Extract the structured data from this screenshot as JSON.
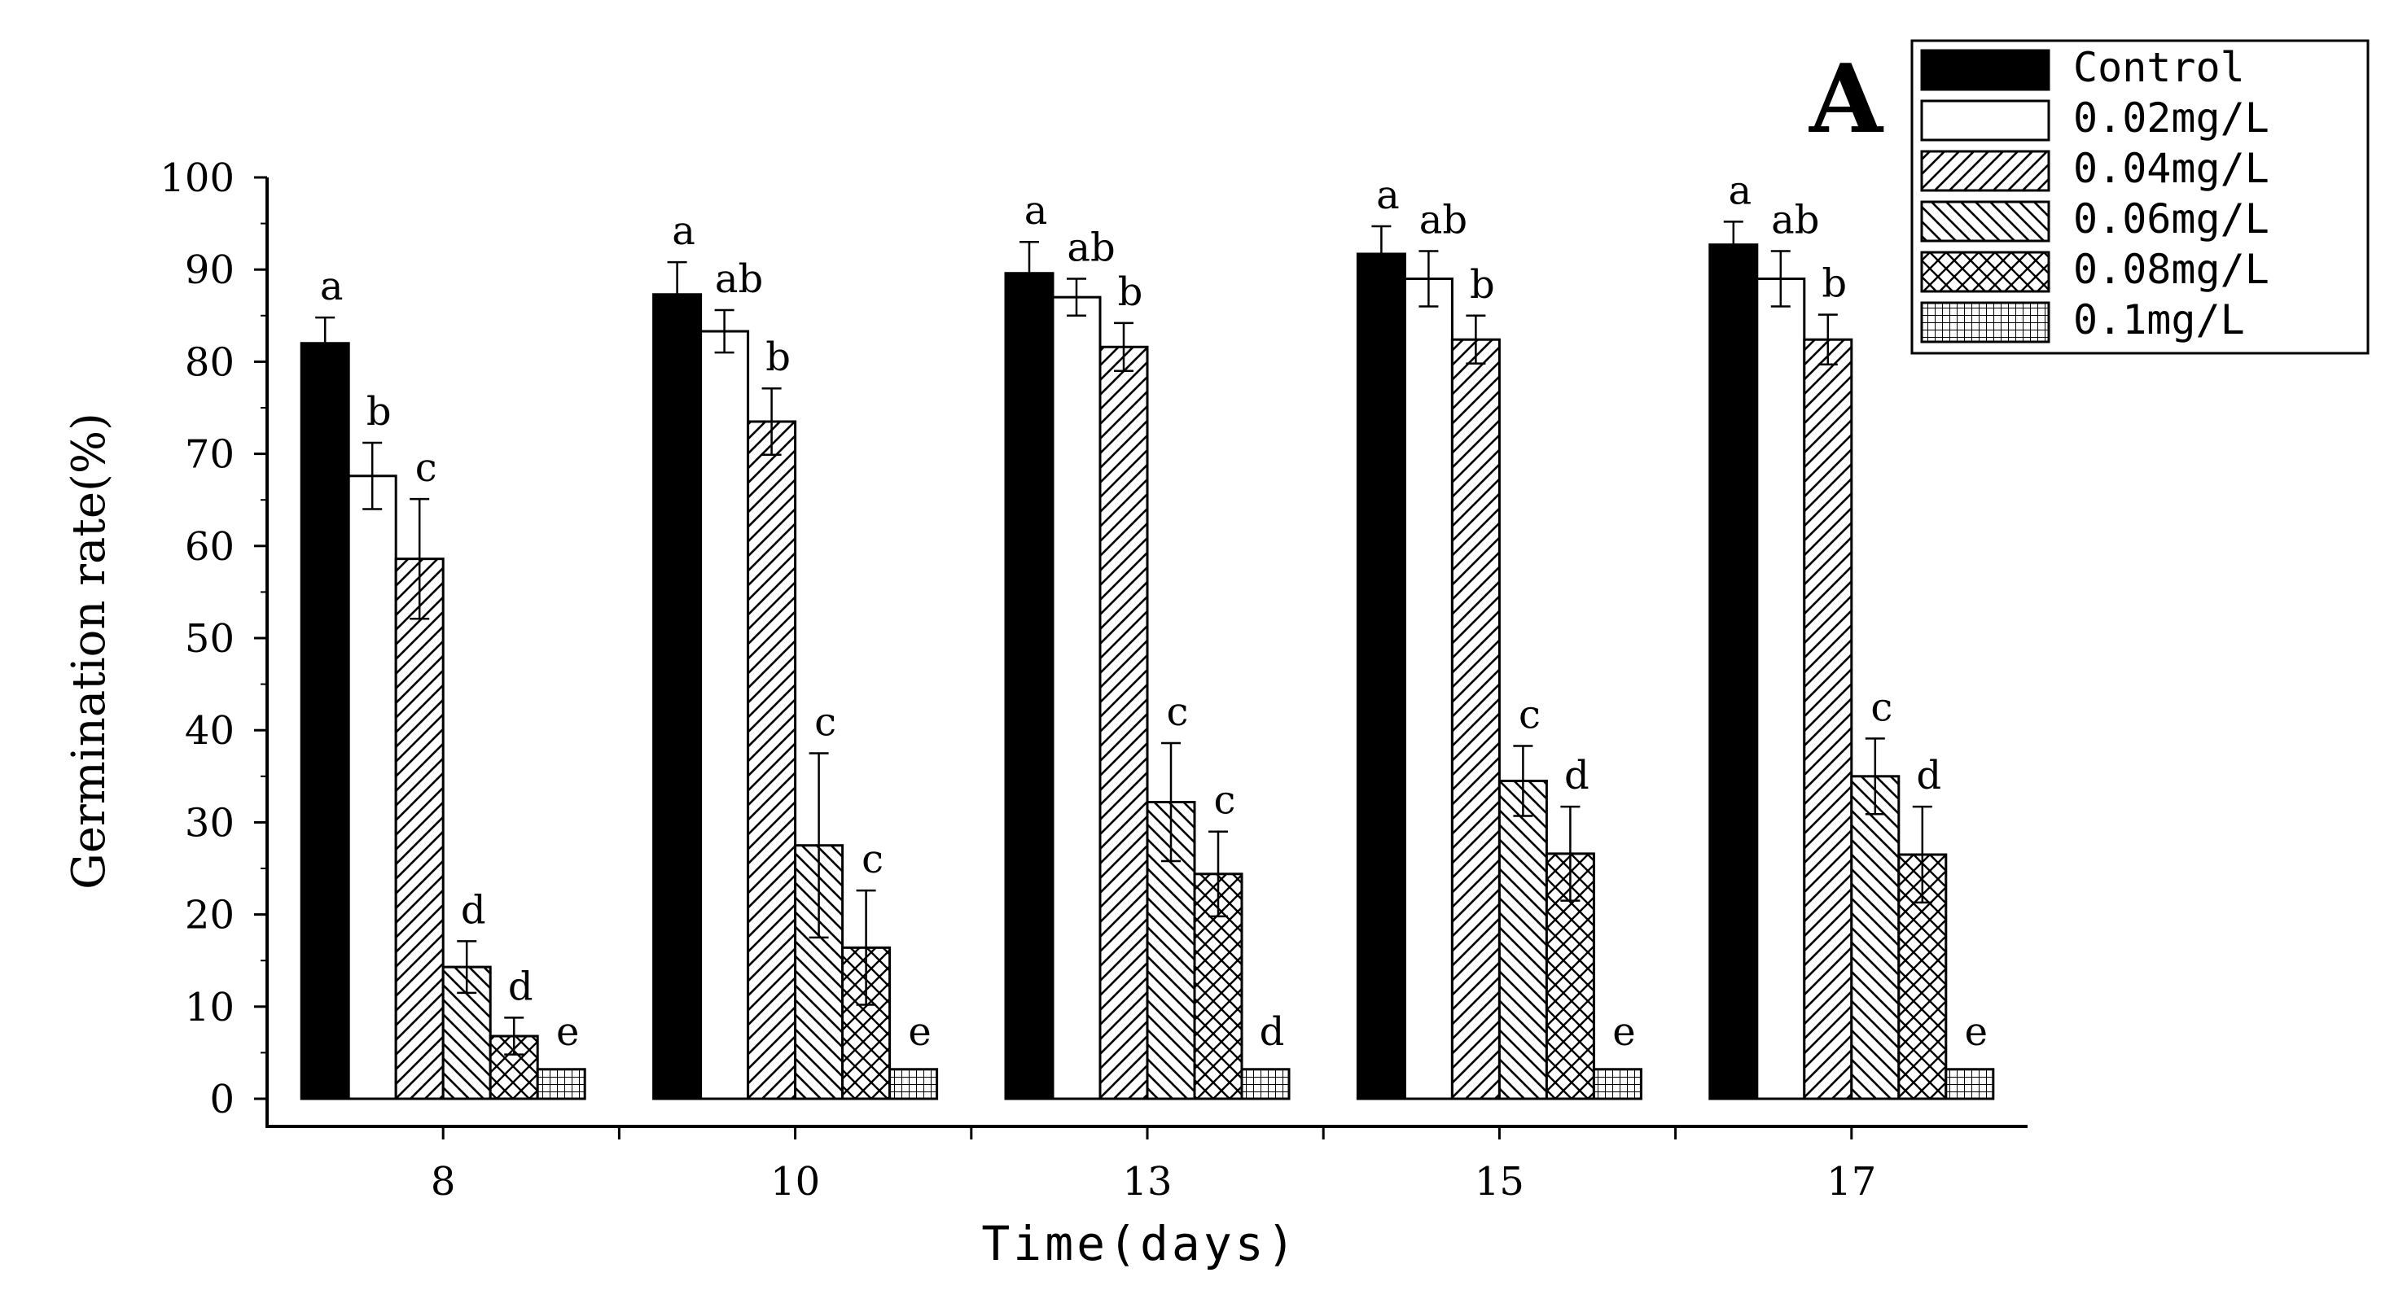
{
  "chart_data": {
    "type": "bar",
    "panel_label": "A",
    "xlabel": "Time(days)",
    "ylabel": "Germination rate(%)",
    "ylim": [
      0,
      100
    ],
    "yticks": [
      0,
      10,
      20,
      30,
      40,
      50,
      60,
      70,
      80,
      90,
      100
    ],
    "categories": [
      "8",
      "10",
      "13",
      "15",
      "17"
    ],
    "legend_position": "top-right",
    "series": [
      {
        "name": "Control",
        "pattern": "solid",
        "values": [
          82,
          87.3,
          89.6,
          91.7,
          92.7
        ],
        "errors": [
          2.8,
          3.5,
          3.4,
          3.0,
          2.5
        ],
        "letters": [
          "a",
          "a",
          "a",
          "a",
          "a"
        ]
      },
      {
        "name": "0.02mg/L",
        "pattern": "empty",
        "values": [
          67.6,
          83.3,
          87,
          89,
          89
        ],
        "errors": [
          3.6,
          2.3,
          2.0,
          3.0,
          3.0
        ],
        "letters": [
          "b",
          "ab",
          "ab",
          "ab",
          "ab"
        ]
      },
      {
        "name": "0.04mg/L",
        "pattern": "diag-right",
        "values": [
          58.6,
          73.5,
          81.6,
          82.4,
          82.4
        ],
        "errors": [
          6.5,
          3.6,
          2.6,
          2.6,
          2.7
        ],
        "letters": [
          "c",
          "b",
          "b",
          "b",
          "b"
        ]
      },
      {
        "name": "0.06mg/L",
        "pattern": "diag-left",
        "values": [
          14.3,
          27.5,
          32.2,
          34.5,
          35
        ],
        "errors": [
          2.8,
          10.0,
          6.4,
          3.8,
          4.1
        ],
        "letters": [
          "d",
          "c",
          "c",
          "c",
          "c"
        ]
      },
      {
        "name": "0.08mg/L",
        "pattern": "cross",
        "values": [
          6.8,
          16.4,
          24.4,
          26.6,
          26.5
        ],
        "errors": [
          2.0,
          6.2,
          4.6,
          5.1,
          5.2
        ],
        "letters": [
          "d",
          "c",
          "c",
          "d",
          "d"
        ]
      },
      {
        "name": "0.1mg/L",
        "pattern": "grid",
        "values": [
          0,
          0,
          0,
          0,
          0
        ],
        "errors": [
          0,
          0,
          0,
          0,
          0
        ],
        "letters": [
          "e",
          "e",
          "d",
          "e",
          "e"
        ]
      }
    ]
  }
}
